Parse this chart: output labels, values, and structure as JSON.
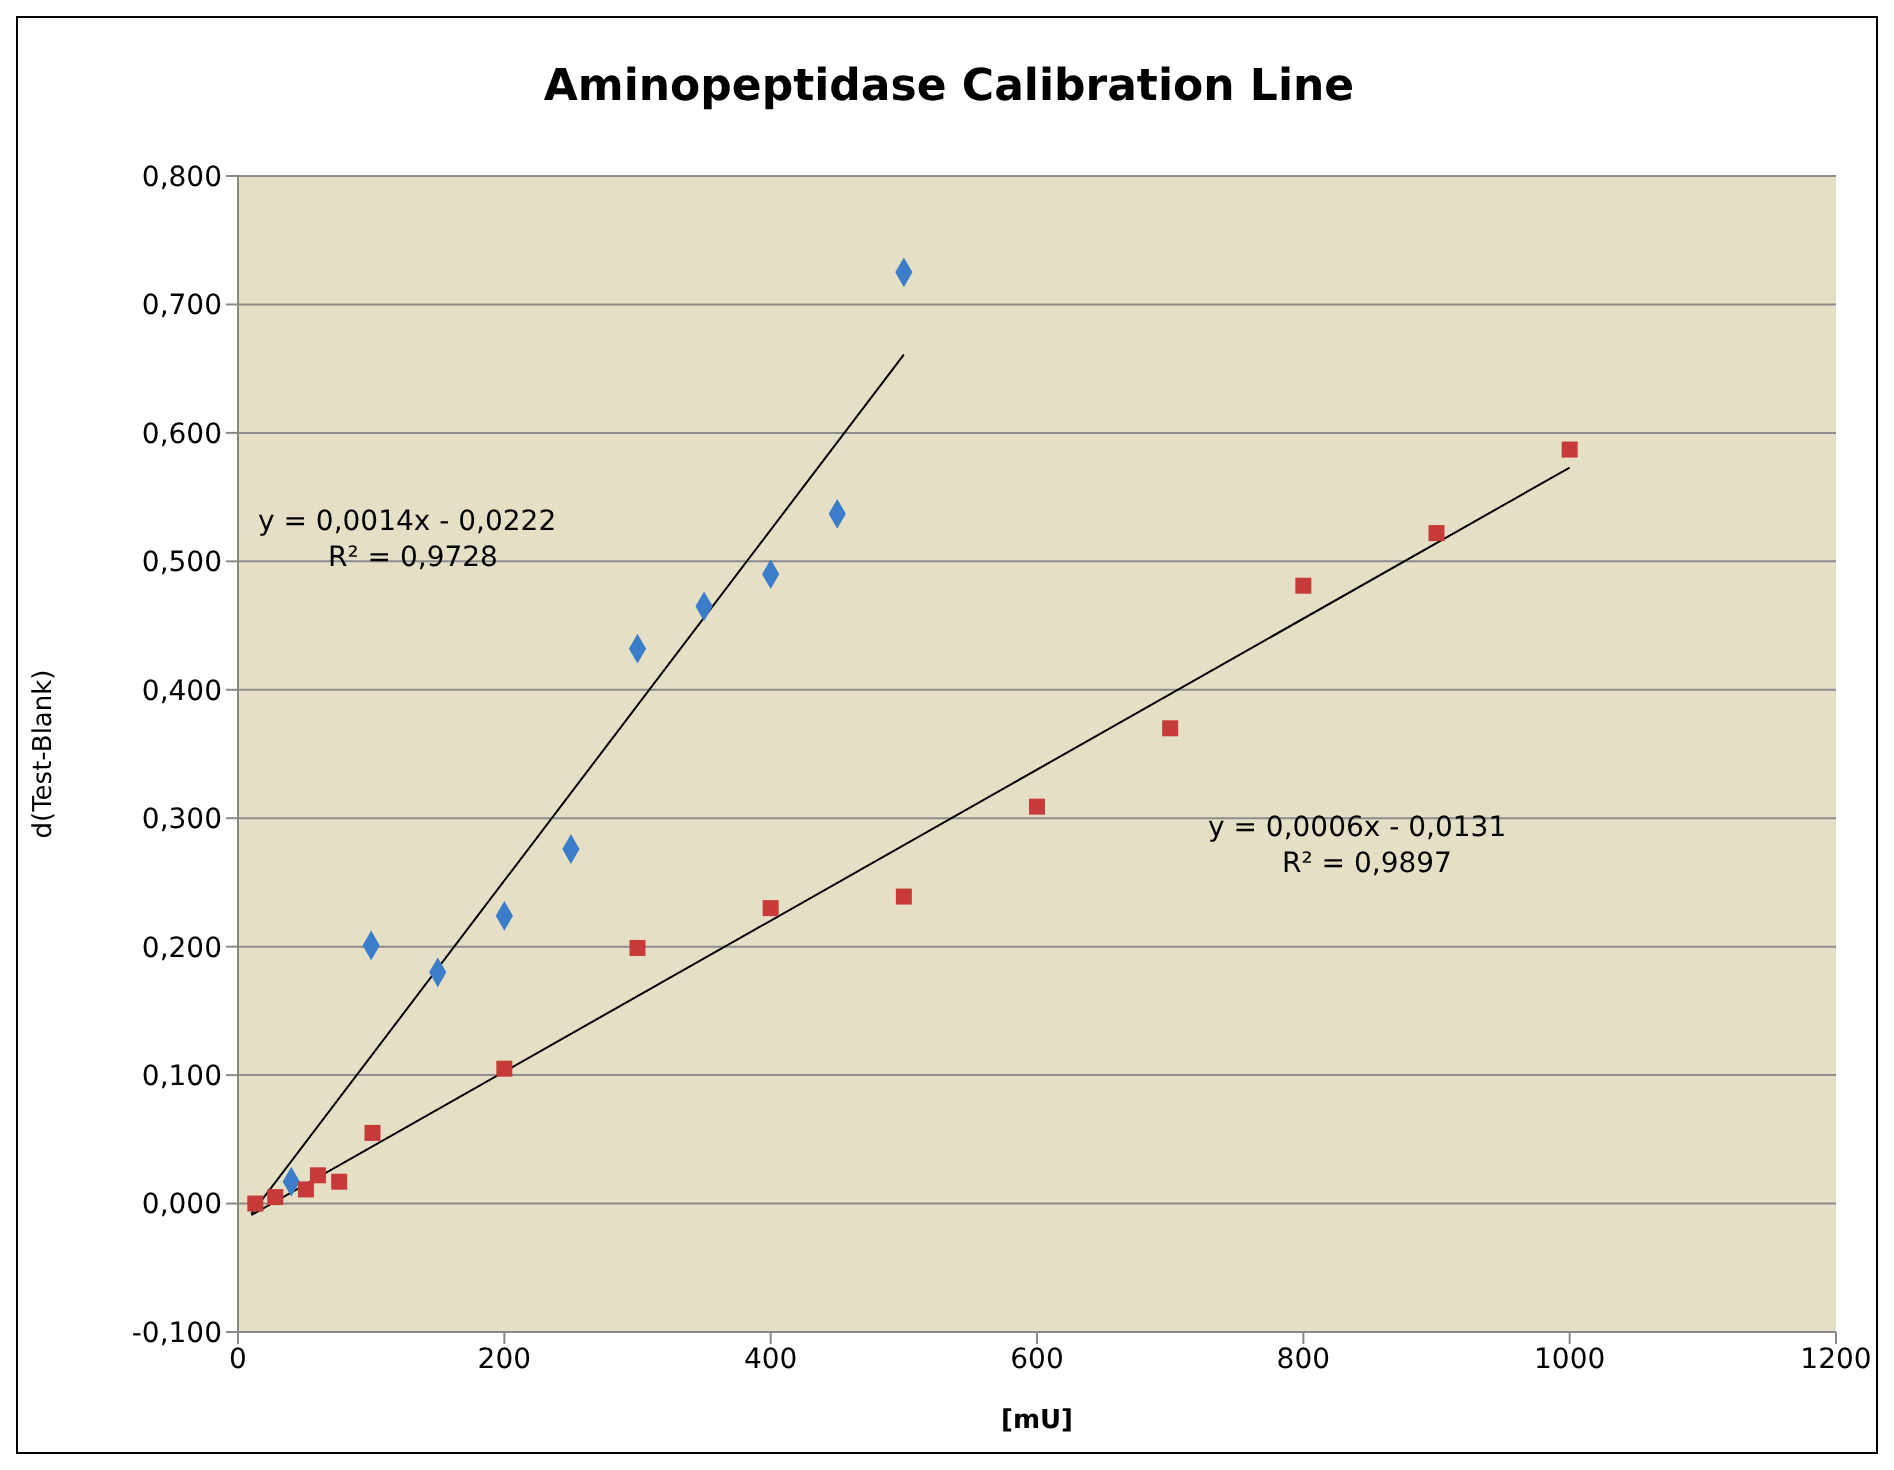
{
  "chart_data": {
    "type": "scatter",
    "title": "Aminopeptidase Calibration Line",
    "xlabel": "[mU]",
    "ylabel": "d(Test-Blank)",
    "xlim": [
      0,
      1200
    ],
    "xticks": [
      0,
      200,
      400,
      600,
      800,
      1000,
      1200
    ],
    "ylim": [
      -0.1,
      0.8
    ],
    "yticks": [
      {
        "value": -0.1,
        "label": "-0,100"
      },
      {
        "value": 0,
        "label": "0,000"
      },
      {
        "value": 0.1,
        "label": "0,100"
      },
      {
        "value": 0.2,
        "label": "0,200"
      },
      {
        "value": 0.3,
        "label": "0,300"
      },
      {
        "value": 0.4,
        "label": "0,400"
      },
      {
        "value": 0.5,
        "label": "0,500"
      },
      {
        "value": 0.6,
        "label": "0,600"
      },
      {
        "value": 0.7,
        "label": "0,700"
      },
      {
        "value": 0.8,
        "label": "0,800"
      }
    ],
    "grid": "y",
    "series": [
      {
        "type": "scatter",
        "marker": "diamond",
        "color": "#3b7dc9",
        "x": [
          40,
          100,
          150,
          200,
          250,
          300,
          350,
          400,
          450,
          500
        ],
        "values": [
          0.017,
          0.201,
          0.18,
          0.224,
          0.276,
          0.432,
          0.465,
          0.49,
          0.537,
          0.725
        ]
      },
      {
        "type": "scatter",
        "marker": "square",
        "color": "#c63a3a",
        "x": [
          13,
          28,
          51,
          60,
          76,
          101,
          200,
          300,
          400,
          500,
          600,
          700,
          800,
          900,
          1000
        ],
        "values": [
          0.0,
          0.005,
          0.011,
          0.022,
          0.017,
          0.055,
          0.105,
          0.199,
          0.23,
          0.239,
          0.309,
          0.37,
          0.481,
          0.522,
          0.587
        ]
      },
      {
        "type": "line",
        "marker": "none",
        "color": "#000000",
        "x": [
          10,
          500
        ],
        "values": [
          -0.008,
          0.661
        ]
      },
      {
        "type": "line",
        "marker": "none",
        "color": "#000000",
        "x": [
          10,
          1000
        ],
        "values": [
          -0.009,
          0.573
        ]
      }
    ],
    "annotations": [
      "y = 0,0014x - 0,0222",
      "R² = 0,9728",
      "y = 0,0006x - 0,0131",
      "R² = 0,9897"
    ]
  }
}
